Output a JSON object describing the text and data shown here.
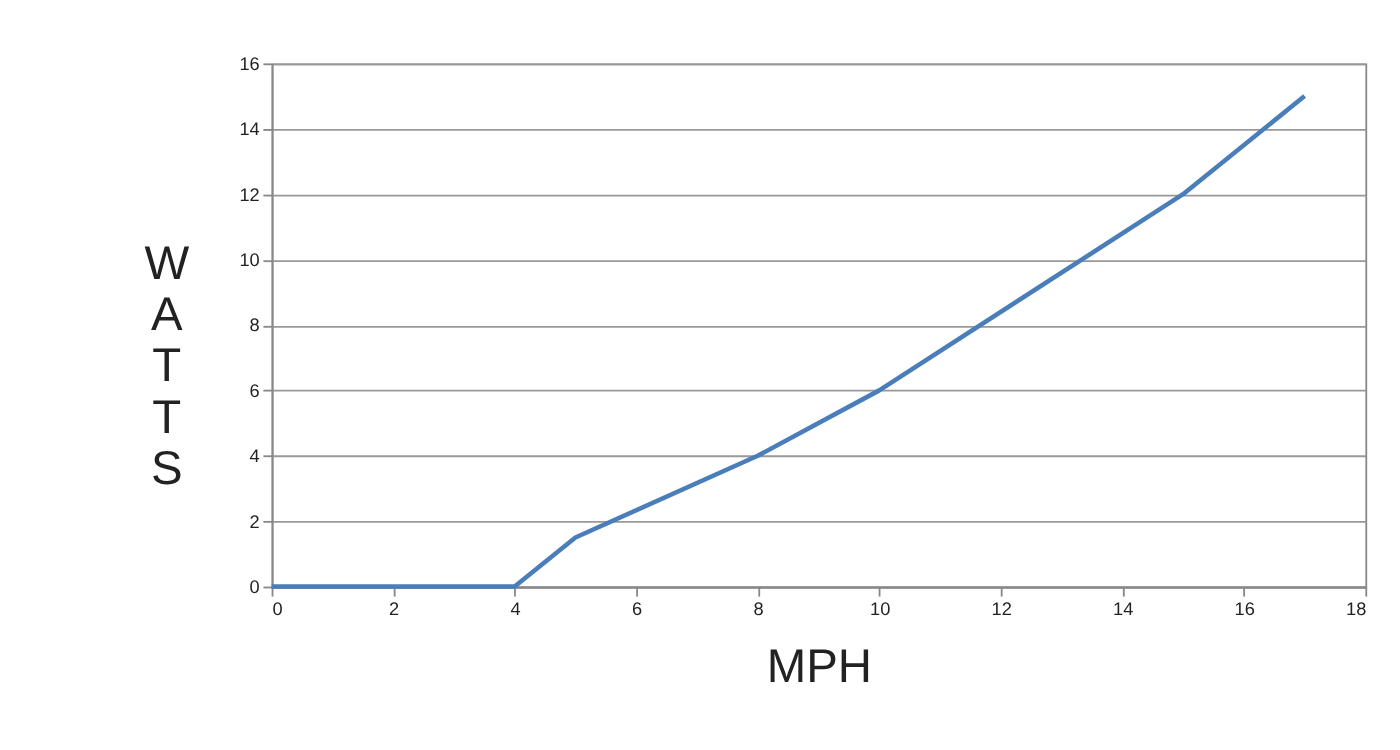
{
  "chart_data": {
    "type": "line",
    "xlabel": "MPH",
    "ylabel": "WATTS",
    "x": [
      0,
      4,
      5,
      8,
      10,
      15,
      17
    ],
    "series": [
      {
        "color": "#4a7ebb",
        "values": [
          0,
          0,
          1.5,
          4,
          6,
          12,
          15
        ]
      }
    ],
    "xlim": [
      0,
      18
    ],
    "xticks": [
      0,
      2,
      4,
      6,
      8,
      10,
      12,
      14,
      16,
      18
    ],
    "ylim": [
      0,
      16
    ],
    "yticks": [
      0,
      2,
      4,
      6,
      8,
      10,
      12,
      14,
      16
    ],
    "grid": "y",
    "marker": "none",
    "line_style": "solid"
  }
}
